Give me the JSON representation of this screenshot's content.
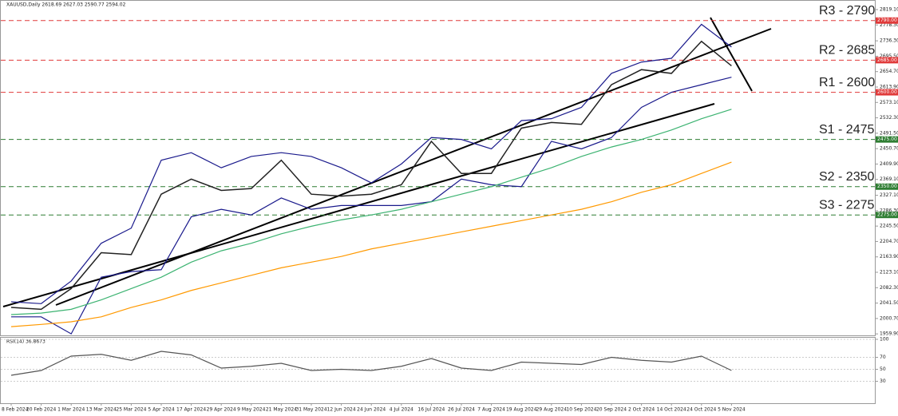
{
  "chart_data": [
    {
      "type": "line",
      "title": "XAUUSD,Daily  2618.69 2627.03 2590.77 2594.02",
      "categories": [
        "8 Feb 2024",
        "20 Feb 2024",
        "1 Mar 2024",
        "13 Mar 2024",
        "25 Mar 2024",
        "5 Apr 2024",
        "17 Apr 2024",
        "29 Apr 2024",
        "9 May 2024",
        "21 May 2024",
        "31 May 2024",
        "12 Jun 2024",
        "24 Jun 2024",
        "4 Jul 2024",
        "16 Jul 2024",
        "26 Jul 2024",
        "7 Aug 2024",
        "19 Aug 2024",
        "29 Aug 2024",
        "10 Sep 2024",
        "20 Sep 2024",
        "2 Oct 2024",
        "14 Oct 2024",
        "24 Oct 2024",
        "5 Nov 2024"
      ],
      "series": [
        {
          "color": "#1a1a8c",
          "values": [
            2045,
            2040,
            2100,
            2200,
            2240,
            2420,
            2440,
            2400,
            2430,
            2440,
            2430,
            2400,
            2360,
            2410,
            2480,
            2475,
            2450,
            2525,
            2530,
            2560,
            2650,
            2680,
            2690,
            2780,
            2720
          ]
        },
        {
          "color": "#1a1a8c",
          "values": [
            2005,
            2005,
            1960,
            2110,
            2125,
            2130,
            2270,
            2290,
            2275,
            2320,
            2290,
            2300,
            2300,
            2300,
            2310,
            2370,
            2355,
            2350,
            2470,
            2450,
            2480,
            2560,
            2600,
            2620,
            2640
          ]
        },
        {
          "color": "#3cb371",
          "values": [
            2011,
            2015,
            2025,
            2050,
            2080,
            2110,
            2150,
            2180,
            2200,
            2225,
            2245,
            2262,
            2275,
            2290,
            2310,
            2330,
            2350,
            2375,
            2400,
            2430,
            2455,
            2475,
            2500,
            2530,
            2555
          ]
        },
        {
          "color": "#ff9900",
          "values": [
            1979,
            1985,
            1992,
            2005,
            2030,
            2050,
            2075,
            2095,
            2115,
            2135,
            2150,
            2165,
            2185,
            2200,
            2215,
            2230,
            2245,
            2260,
            2275,
            2290,
            2310,
            2335,
            2355,
            2385,
            2415
          ]
        },
        {
          "color": "#222222",
          "values": [
            2030,
            2025,
            2080,
            2175,
            2170,
            2330,
            2370,
            2340,
            2345,
            2420,
            2330,
            2325,
            2330,
            2355,
            2470,
            2385,
            2385,
            2505,
            2520,
            2515,
            2620,
            2660,
            2650,
            2735,
            2670
          ]
        }
      ],
      "levels": [
        {
          "label": "R3 - 2790",
          "value": 2790,
          "tag": "2790.00",
          "color": "#e03a3a"
        },
        {
          "label": "R2 - 2685",
          "value": 2685,
          "tag": "2685.00",
          "color": "#e03a3a"
        },
        {
          "label": "R1 - 2600",
          "value": 2600,
          "tag": "2600.00",
          "color": "#e03a3a"
        },
        {
          "label": "S1 - 2475",
          "value": 2475,
          "tag": "2475.00",
          "color": "#2e7d32"
        },
        {
          "label": "S2 - 2350",
          "value": 2350,
          "tag": "2350.00",
          "color": "#2e7d32"
        },
        {
          "label": "S3 - 2275",
          "value": 2275,
          "tag": "2275.00",
          "color": "#2e7d32"
        }
      ],
      "ylim": [
        1956,
        2836
      ],
      "yticks": [
        {
          "value": 2819.1,
          "label": "2819.10"
        },
        {
          "value": 2778.3,
          "label": "2778.30"
        },
        {
          "value": 2736.3,
          "label": "2736.30"
        },
        {
          "value": 2695.5,
          "label": "2695.50"
        },
        {
          "value": 2654.7,
          "label": "2654.70"
        },
        {
          "value": 2613.9,
          "label": "2613.90"
        },
        {
          "value": 2573.1,
          "label": "2573.10"
        },
        {
          "value": 2532.3,
          "label": "2532.30"
        },
        {
          "value": 2491.5,
          "label": "2491.50"
        },
        {
          "value": 2450.7,
          "label": "2450.70"
        },
        {
          "value": 2409.9,
          "label": "2409.90"
        },
        {
          "value": 2369.1,
          "label": "2369.10"
        },
        {
          "value": 2327.1,
          "label": "2327.10"
        },
        {
          "value": 2286.3,
          "label": "2286.30"
        },
        {
          "value": 2245.5,
          "label": "2245.50"
        },
        {
          "value": 2204.7,
          "label": "2204.70"
        },
        {
          "value": 2163.9,
          "label": "2163.90"
        },
        {
          "value": 2123.1,
          "label": "2123.10"
        },
        {
          "value": 2082.3,
          "label": "2082.30"
        },
        {
          "value": 2041.5,
          "label": "2041.50"
        },
        {
          "value": 2000.7,
          "label": "2000.70"
        },
        {
          "value": 1959.9,
          "label": "1959.90"
        }
      ]
    },
    {
      "type": "line",
      "title": "RSI(14) 36.8673",
      "series": [
        {
          "color": "#555555",
          "values": [
            40,
            48,
            72,
            75,
            65,
            80,
            74,
            52,
            55,
            60,
            48,
            50,
            48,
            55,
            68,
            52,
            48,
            62,
            60,
            58,
            70,
            65,
            62,
            72,
            48
          ]
        }
      ],
      "ylim": [
        0,
        100
      ],
      "yticks": [
        100,
        70,
        50,
        30
      ]
    }
  ]
}
